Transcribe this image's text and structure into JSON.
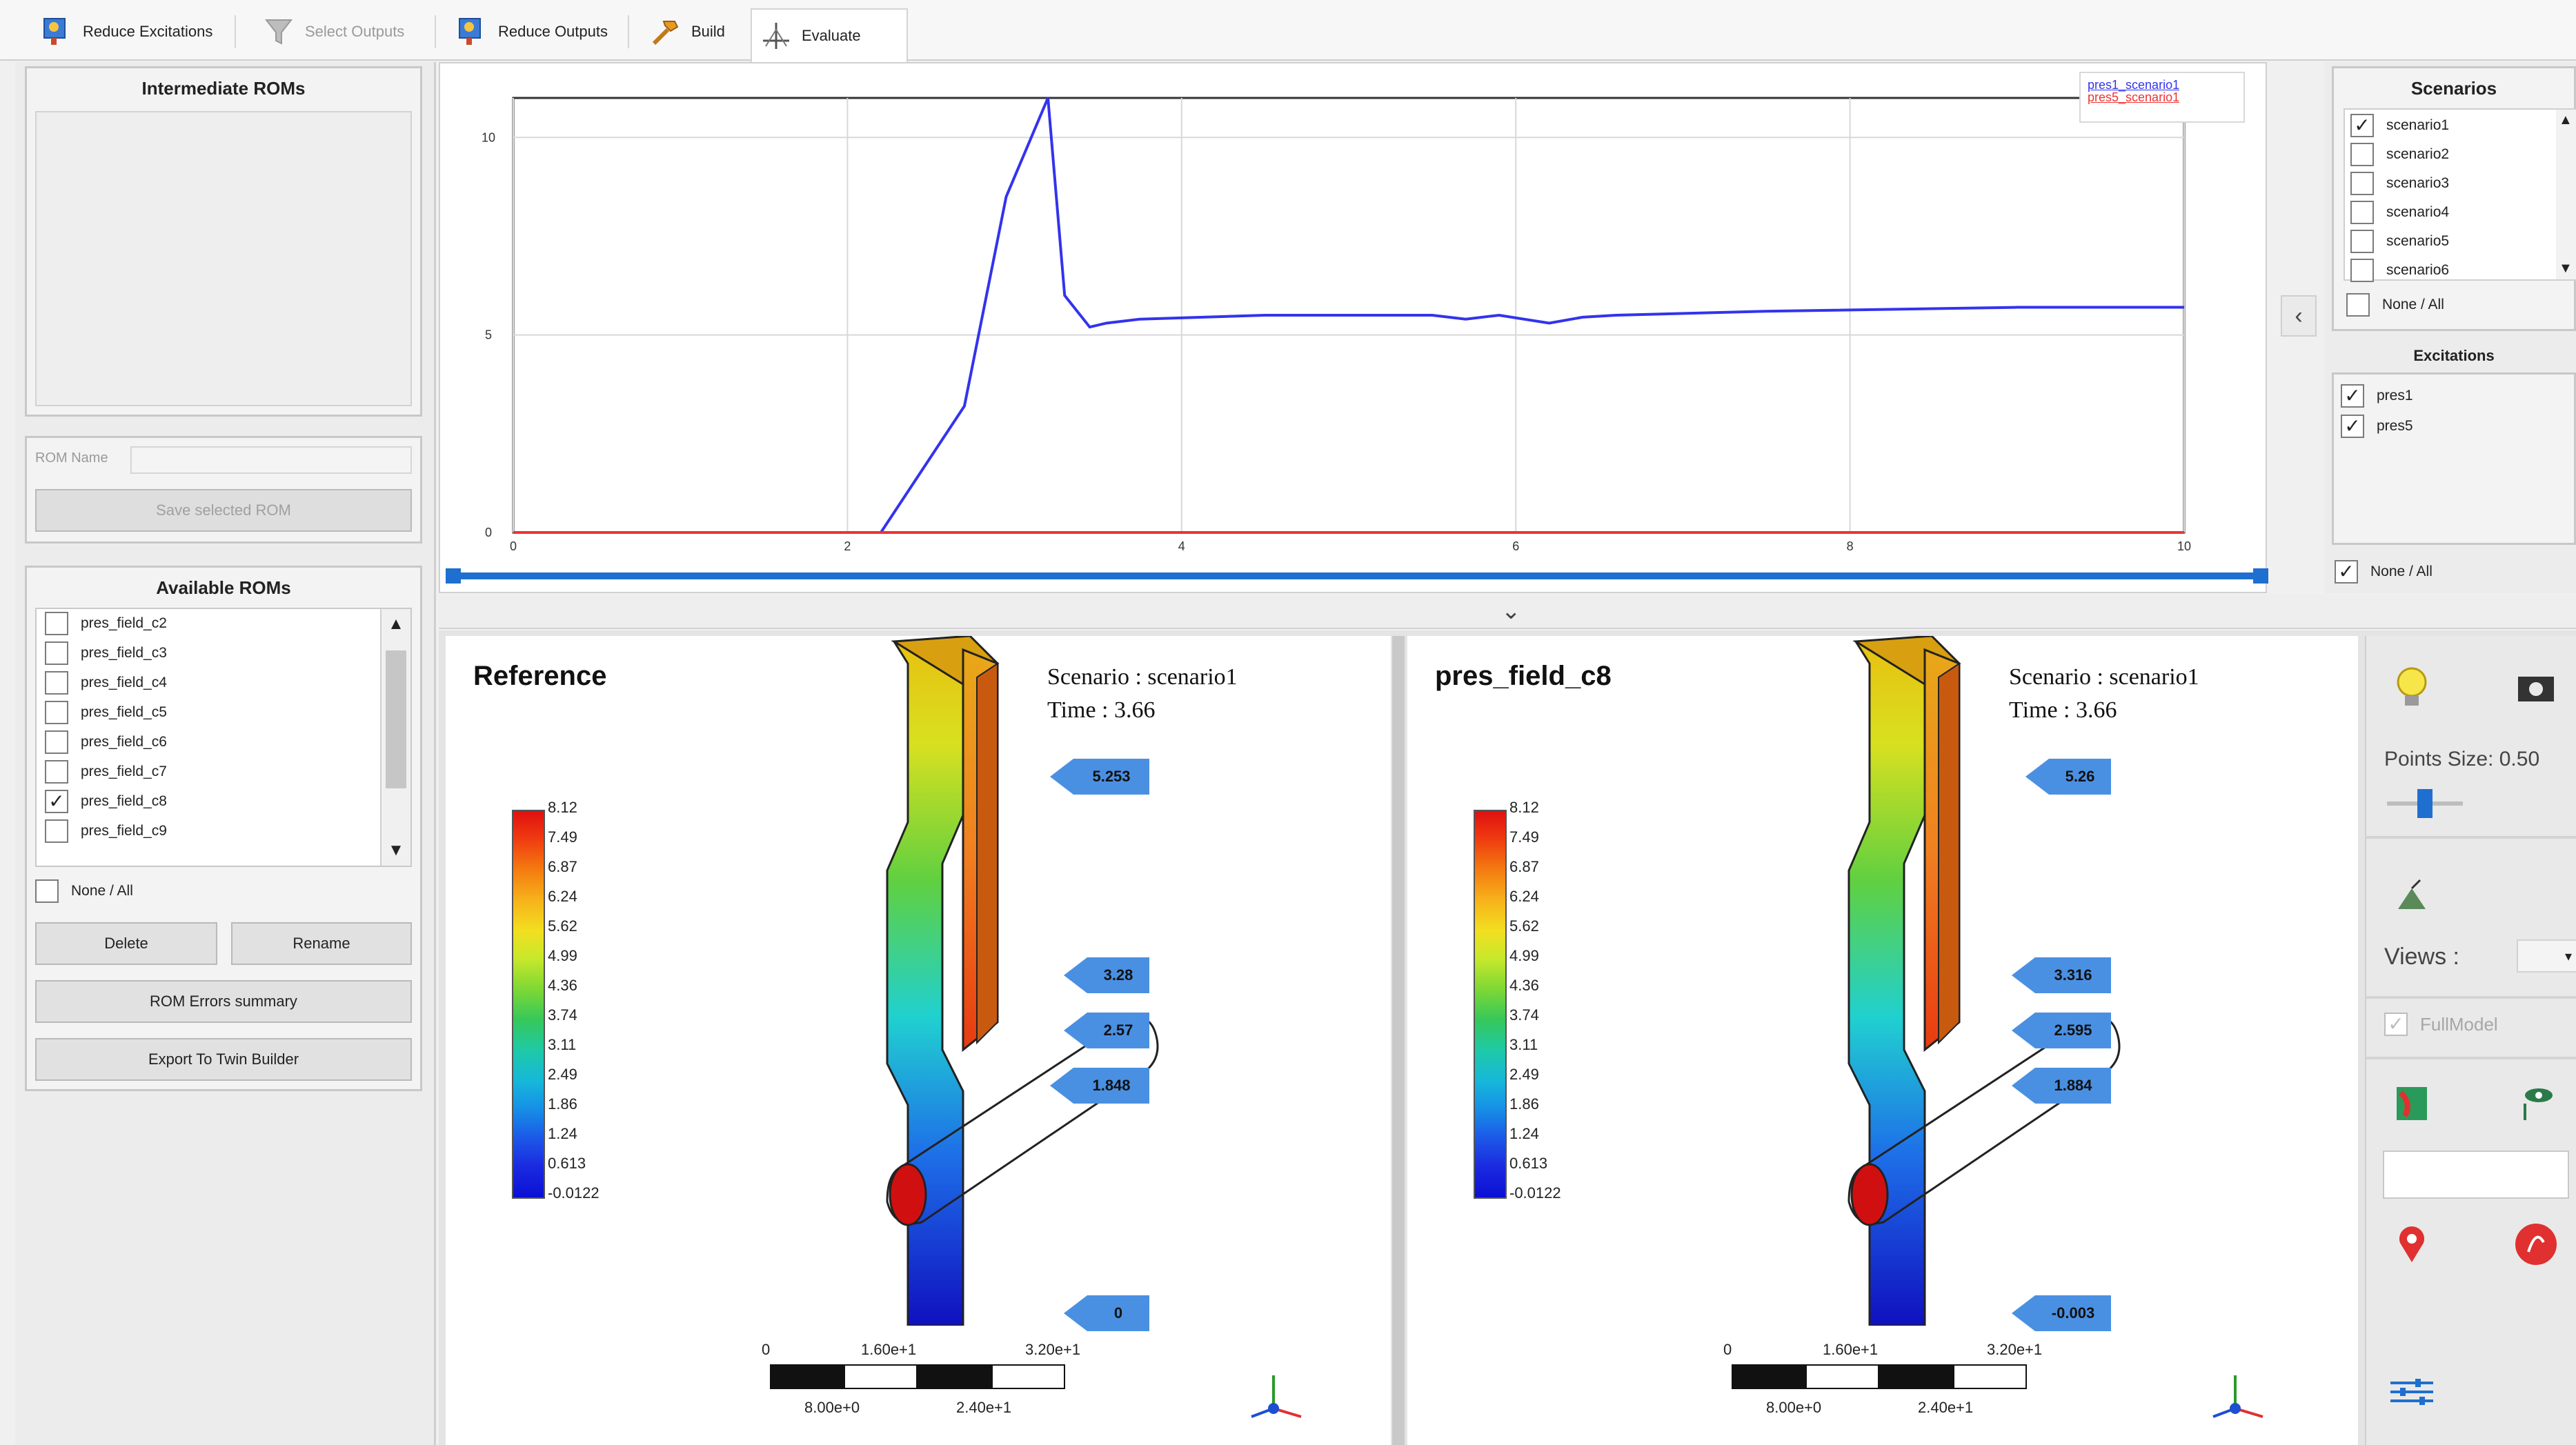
{
  "toolbar": {
    "tabs": [
      {
        "label": "Reduce Excitations",
        "state": "normal"
      },
      {
        "label": "Select Outputs",
        "state": "disabled"
      },
      {
        "label": "Reduce Outputs",
        "state": "normal"
      },
      {
        "label": "Build",
        "state": "normal"
      },
      {
        "label": "Evaluate",
        "state": "active"
      }
    ]
  },
  "left": {
    "intermediate_title": "Intermediate ROMs",
    "rom_name_label": "ROM Name",
    "rom_name_value": "",
    "save_label": "Save selected ROM",
    "available_title": "Available ROMs",
    "roms": [
      {
        "label": "pres_field_c2",
        "checked": false
      },
      {
        "label": "pres_field_c3",
        "checked": false
      },
      {
        "label": "pres_field_c4",
        "checked": false
      },
      {
        "label": "pres_field_c5",
        "checked": false
      },
      {
        "label": "pres_field_c6",
        "checked": false
      },
      {
        "label": "pres_field_c7",
        "checked": false
      },
      {
        "label": "pres_field_c8",
        "checked": true
      },
      {
        "label": "pres_field_c9",
        "checked": false
      }
    ],
    "none_all_label": "None / All",
    "delete_label": "Delete",
    "rename_label": "Rename",
    "errors_label": "ROM Errors summary",
    "export_label": "Export To Twin Builder"
  },
  "chart_data": {
    "type": "line",
    "title": "",
    "xlabel": "",
    "ylabel": "",
    "xlim": [
      0,
      10
    ],
    "ylim": [
      0,
      11
    ],
    "x_ticks": [
      "0",
      "2",
      "4",
      "6",
      "8",
      "10"
    ],
    "y_ticks": [
      "0",
      "5",
      "10"
    ],
    "grid": true,
    "legend_position": "top-right",
    "series": [
      {
        "name": "pres1_scenario1",
        "color": "#3333ee",
        "x": [
          2.2,
          2.7,
          2.95,
          3.2,
          3.3,
          3.45,
          3.55,
          3.75,
          4.5,
          5.5,
          5.7,
          5.9,
          6.2,
          6.4,
          6.6,
          7.5,
          9.0,
          10.0
        ],
        "y": [
          0,
          3.2,
          8.5,
          11.0,
          6.0,
          5.2,
          5.3,
          5.4,
          5.5,
          5.5,
          5.4,
          5.5,
          5.3,
          5.45,
          5.5,
          5.6,
          5.7,
          5.7
        ]
      },
      {
        "name": "pres5_scenario1",
        "color": "#ee3333",
        "x": [
          0,
          10
        ],
        "y": [
          0,
          0
        ]
      }
    ]
  },
  "scenarios": {
    "title": "Scenarios",
    "items": [
      {
        "label": "scenario1",
        "checked": true
      },
      {
        "label": "scenario2",
        "checked": false
      },
      {
        "label": "scenario3",
        "checked": false
      },
      {
        "label": "scenario4",
        "checked": false
      },
      {
        "label": "scenario5",
        "checked": false
      },
      {
        "label": "scenario6",
        "checked": false
      }
    ],
    "none_all_label": "None / All"
  },
  "excitations": {
    "title": "Excitations",
    "items": [
      {
        "label": "pres1",
        "checked": true
      },
      {
        "label": "pres5",
        "checked": true
      }
    ],
    "none_all_label": "None / All"
  },
  "viewports": [
    {
      "title": "Reference",
      "scenario": "Scenario : scenario1",
      "time": "Time : 3.66",
      "probes": [
        "5.253",
        "3.28",
        "2.57",
        "1.848",
        "0"
      ]
    },
    {
      "title": "pres_field_c8",
      "scenario": "Scenario : scenario1",
      "time": "Time : 3.66",
      "probes": [
        "5.26",
        "3.316",
        "2.595",
        "1.884",
        "-0.003"
      ]
    }
  ],
  "colorbar_labels": [
    "8.12",
    "7.49",
    "6.87",
    "6.24",
    "5.62",
    "4.99",
    "4.36",
    "3.74",
    "3.11",
    "2.49",
    "1.86",
    "1.24",
    "0.613",
    "-0.0122"
  ],
  "scalebar": {
    "top": [
      "0",
      "1.60e+1",
      "3.20e+1"
    ],
    "bottom": [
      "8.00e+0",
      "2.40e+1"
    ]
  },
  "right_tools": {
    "points_size_label": "Points Size: 0.50",
    "points_size_value": 0.5,
    "views_label": "Views :",
    "views_value": "",
    "fullmodel_label": "FullModel",
    "fullmodel_checked": true
  },
  "colors": {
    "accent_blue": "#1e6fd0",
    "series_blue": "#3333ee",
    "series_red": "#ee3333"
  }
}
